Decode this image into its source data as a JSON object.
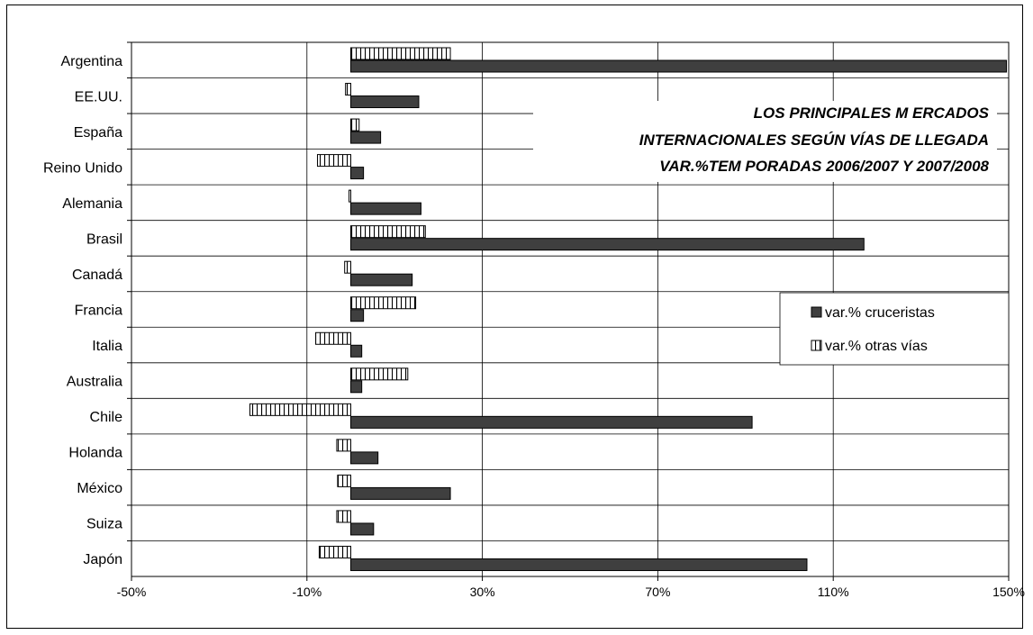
{
  "chart_data": {
    "type": "bar",
    "orientation": "horizontal",
    "title_lines": [
      "LOS PRINCIPALES M ERCADOS",
      "INTERNACIONALES SEGÚN VÍAS DE LLEGADA",
      "VAR.%TEM PORADAS 2006/2007 Y 2007/2008"
    ],
    "categories": [
      "Argentina",
      "EE.UU.",
      "España",
      "Reino Unido",
      "Alemania",
      "Brasil",
      "Canadá",
      "Francia",
      "Italia",
      "Australia",
      "Chile",
      "Holanda",
      "México",
      "Suiza",
      "Japón"
    ],
    "series": [
      {
        "name": "var.% otras vías",
        "pattern": "vertical-stripes",
        "values": [
          22.7,
          -1.2,
          1.9,
          -7.6,
          -0.4,
          17.0,
          -1.4,
          14.8,
          -8.0,
          13.0,
          -23.0,
          -3.2,
          -3.0,
          -3.2,
          -7.2
        ]
      },
      {
        "name": "var.% cruceristas",
        "pattern": "solid",
        "color": "#3f3f3f",
        "values": [
          149.5,
          15.5,
          6.8,
          2.9,
          16.0,
          117.0,
          14.0,
          2.9,
          2.5,
          2.5,
          91.5,
          6.2,
          22.7,
          5.2,
          104.0
        ]
      }
    ],
    "xlim": [
      -50,
      150
    ],
    "x_ticks": [
      -50,
      -10,
      30,
      70,
      110,
      150
    ],
    "x_tick_labels": [
      "-50%",
      "-10%",
      "30%",
      "70%",
      "110%",
      "150%"
    ],
    "grid": true,
    "legend_position": "right-middle"
  }
}
